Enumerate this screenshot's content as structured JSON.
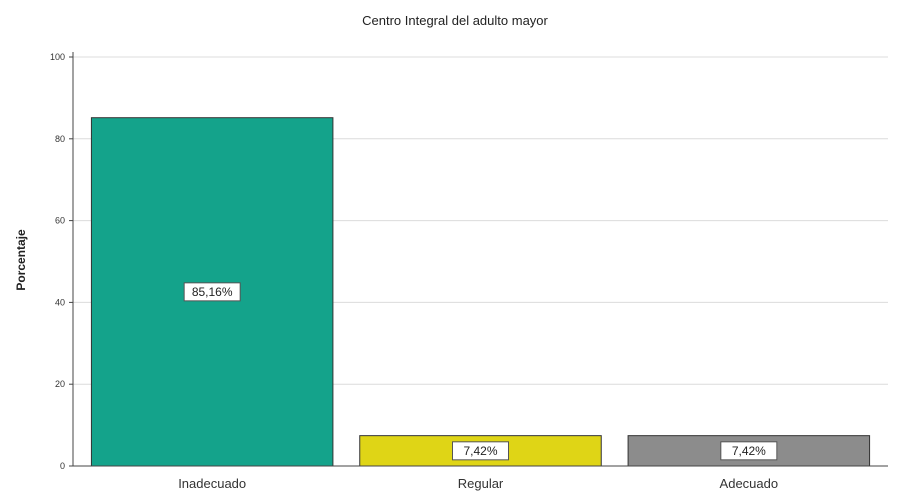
{
  "chart_data": {
    "type": "bar",
    "title": "Centro Integral del adulto mayor",
    "xlabel": "",
    "ylabel": "Porcentaje",
    "categories": [
      "Inadecuado",
      "Regular",
      "Adecuado"
    ],
    "values": [
      85.16,
      7.42,
      7.42
    ],
    "data_labels": [
      "85,16%",
      "7,42%",
      "7,42%"
    ],
    "colors": [
      "#14a38b",
      "#dfd516",
      "#8c8c8c"
    ],
    "ylim": [
      0,
      100
    ],
    "yticks": [
      0,
      20,
      40,
      60,
      80,
      100
    ],
    "grid": true,
    "legend": "none"
  }
}
